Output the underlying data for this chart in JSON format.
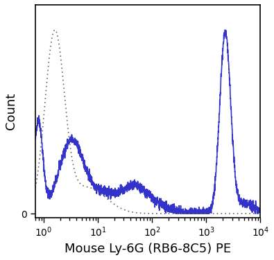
{
  "title": "",
  "xlabel": "Mouse Ly-6G (RB6-8C5) PE",
  "ylabel": "Count",
  "xmin": 0.7,
  "xmax": 10000,
  "solid_color": "#3333cc",
  "dashed_color": "#666666",
  "background_color": "#ffffff",
  "xlabel_fontsize": 13,
  "ylabel_fontsize": 13
}
